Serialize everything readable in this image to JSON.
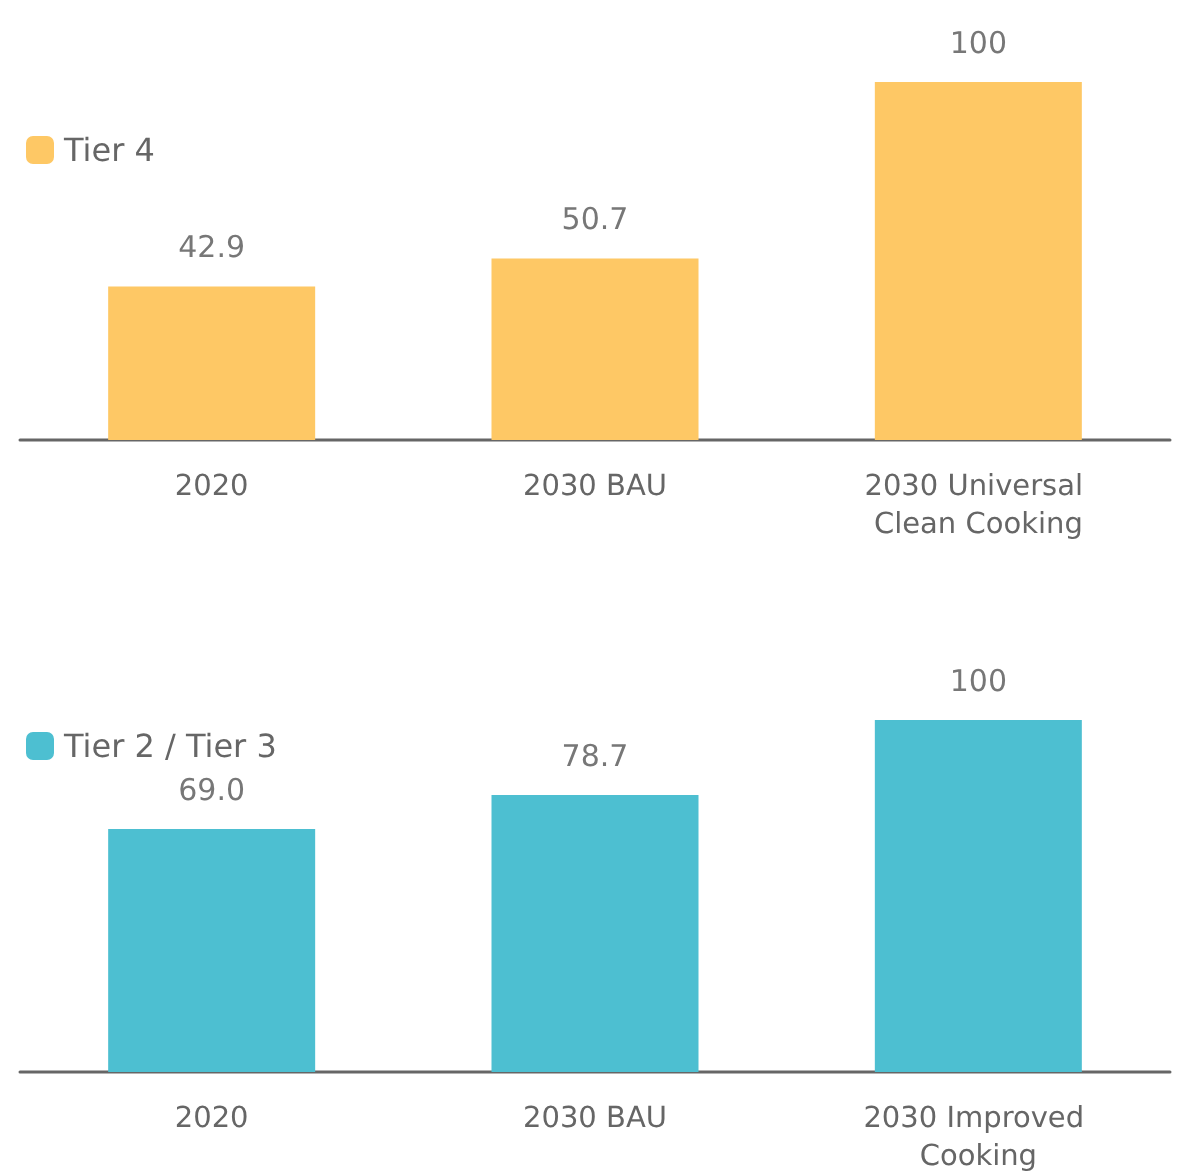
{
  "chart_data": [
    {
      "type": "bar",
      "categories": [
        "2020",
        "2030 BAU",
        "2030 Universal Clean Cooking"
      ],
      "series": [
        {
          "name": "Tier 4",
          "color": "#fec865",
          "values": [
            42.9,
            50.7,
            100
          ],
          "value_labels": [
            "42.9",
            "50.7",
            "100"
          ]
        }
      ],
      "legend": "top left"
    },
    {
      "type": "bar",
      "categories": [
        "2020",
        "2030 BAU",
        "2030 Improved Cooking"
      ],
      "series": [
        {
          "name": "Tier 2 / Tier 3",
          "color": "#4dbfd1",
          "values": [
            69.0,
            78.7,
            100
          ],
          "value_labels": [
            "69.0",
            "78.7",
            "100"
          ]
        }
      ],
      "legend": "top left"
    }
  ]
}
